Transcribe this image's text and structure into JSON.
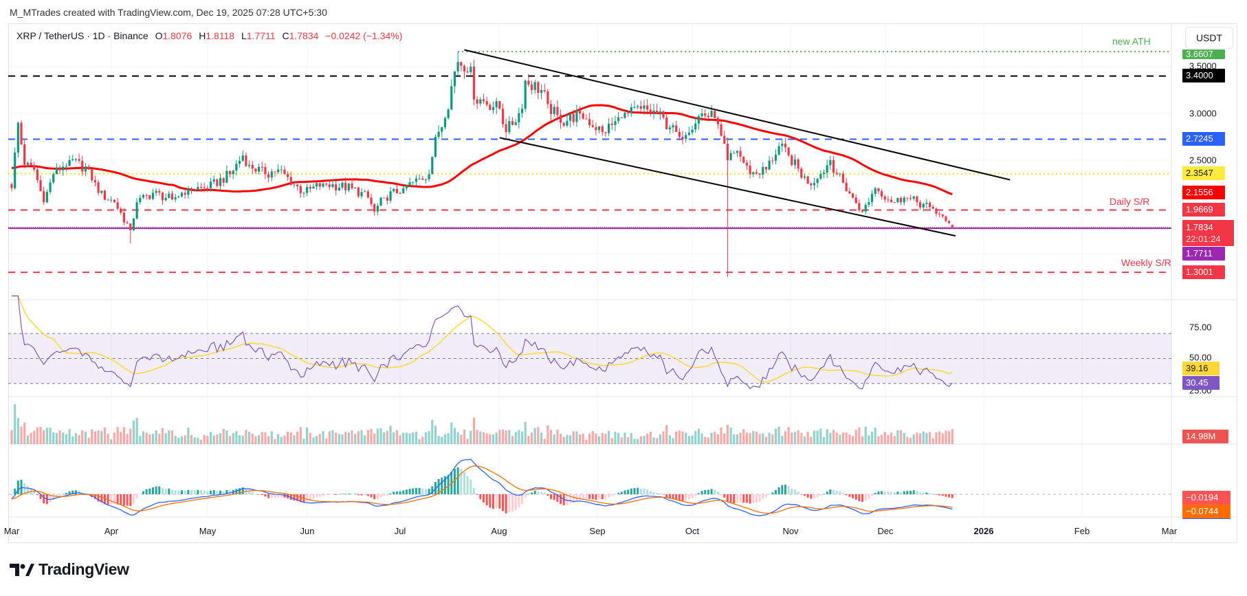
{
  "header": {
    "credit": "M_MTrades created with TradingView.com, Dec 19, 2025 07:28 UTC+5:30"
  },
  "legend": {
    "symbol": "XRP / TetherUS · 1D · Binance",
    "o_label": "O",
    "o": "1.8076",
    "h_label": "H",
    "h": "1.8118",
    "l_label": "L",
    "l": "1.7711",
    "c_label": "C",
    "c": "1.7834",
    "change": "−0.0242 (−1.34%)"
  },
  "currency_button": "USDT",
  "price_axis": {
    "ticks": [
      "3.5000",
      "3.0000",
      "2.5000"
    ]
  },
  "levels": {
    "ath": {
      "value": "3.6607",
      "label": "new ATH",
      "color": "#4caf50"
    },
    "black": {
      "value": "3.4000",
      "color": "#000000"
    },
    "blue": {
      "value": "2.7245",
      "color": "#2962ff"
    },
    "yellow": {
      "value": "2.3547",
      "color": "#ffeb3b"
    },
    "ma": {
      "value": "2.1556",
      "color": "#ff0000"
    },
    "daily": {
      "value": "1.9669",
      "label": "Daily S/R",
      "color": "#f23645"
    },
    "last": {
      "value": "1.7834",
      "countdown": "22:01:24",
      "color": "#f23645"
    },
    "support": {
      "value": "1.7711",
      "color": "#9c27b0"
    },
    "weekly": {
      "value": "1.3001",
      "label": "Weekly S/R",
      "color": "#f23645"
    }
  },
  "rsi": {
    "ticks": [
      "75.00",
      "50.00",
      "25.00"
    ],
    "ma_value": "39.16",
    "value": "30.45",
    "line_color": "#7e57c2",
    "ma_color": "#fdd835"
  },
  "volume": {
    "value": "14.98M",
    "up_color": "#26a69a",
    "down_color": "#ef5350"
  },
  "macd": {
    "histogram": "−0.0194",
    "signal": "−0.0744",
    "macd_color": "#2962ff",
    "signal_color": "#ff6d00"
  },
  "time_axis": {
    "ticks": [
      "Mar",
      "Apr",
      "May",
      "Jun",
      "Jul",
      "Aug",
      "Sep",
      "Oct",
      "Nov",
      "Dec",
      "2026",
      "Feb",
      "Mar"
    ]
  },
  "footer": {
    "brand": "TradingView"
  },
  "chart_data": {
    "type": "candlestick",
    "title": "XRP / TetherUS · 1D · Binance",
    "x_range": [
      "2025-03-01",
      "2026-03-01"
    ],
    "ylim": [
      1.2,
      3.75
    ],
    "approx_close_path": [
      [
        "2025-03-01",
        2.2
      ],
      [
        "2025-03-03",
        2.9
      ],
      [
        "2025-03-05",
        2.45
      ],
      [
        "2025-03-08",
        2.4
      ],
      [
        "2025-03-11",
        2.05
      ],
      [
        "2025-03-14",
        2.35
      ],
      [
        "2025-03-19",
        2.5
      ],
      [
        "2025-03-25",
        2.4
      ],
      [
        "2025-03-28",
        2.15
      ],
      [
        "2025-04-02",
        2.05
      ],
      [
        "2025-04-07",
        1.75
      ],
      [
        "2025-04-09",
        2.05
      ],
      [
        "2025-04-14",
        2.15
      ],
      [
        "2025-04-20",
        2.08
      ],
      [
        "2025-04-25",
        2.2
      ],
      [
        "2025-05-01",
        2.2
      ],
      [
        "2025-05-08",
        2.35
      ],
      [
        "2025-05-12",
        2.55
      ],
      [
        "2025-05-14",
        2.45
      ],
      [
        "2025-05-19",
        2.35
      ],
      [
        "2025-05-23",
        2.4
      ],
      [
        "2025-05-31",
        2.15
      ],
      [
        "2025-06-06",
        2.25
      ],
      [
        "2025-06-15",
        2.2
      ],
      [
        "2025-06-20",
        2.1
      ],
      [
        "2025-06-22",
        1.95
      ],
      [
        "2025-06-25",
        2.1
      ],
      [
        "2025-07-01",
        2.2
      ],
      [
        "2025-07-09",
        2.35
      ],
      [
        "2025-07-11",
        2.75
      ],
      [
        "2025-07-14",
        2.95
      ],
      [
        "2025-07-17",
        3.45
      ],
      [
        "2025-07-18",
        3.55
      ],
      [
        "2025-07-22",
        3.5
      ],
      [
        "2025-07-23",
        3.15
      ],
      [
        "2025-07-25",
        3.15
      ],
      [
        "2025-07-31",
        3.05
      ],
      [
        "2025-08-02",
        2.8
      ],
      [
        "2025-08-07",
        3.05
      ],
      [
        "2025-08-08",
        3.35
      ],
      [
        "2025-08-13",
        3.25
      ],
      [
        "2025-08-15",
        3.1
      ],
      [
        "2025-08-19",
        2.9
      ],
      [
        "2025-08-25",
        3.0
      ],
      [
        "2025-09-01",
        2.8
      ],
      [
        "2025-09-07",
        2.95
      ],
      [
        "2025-09-13",
        3.05
      ],
      [
        "2025-09-18",
        3.0
      ],
      [
        "2025-09-22",
        2.85
      ],
      [
        "2025-09-25",
        2.75
      ],
      [
        "2025-10-02",
        3.0
      ],
      [
        "2025-10-06",
        2.95
      ],
      [
        "2025-10-10",
        2.5
      ],
      [
        "2025-10-13",
        2.6
      ],
      [
        "2025-10-17",
        2.35
      ],
      [
        "2025-10-22",
        2.4
      ],
      [
        "2025-10-26",
        2.65
      ],
      [
        "2025-10-29",
        2.55
      ],
      [
        "2025-11-04",
        2.25
      ],
      [
        "2025-11-07",
        2.3
      ],
      [
        "2025-11-11",
        2.5
      ],
      [
        "2025-11-13",
        2.35
      ],
      [
        "2025-11-18",
        2.1
      ],
      [
        "2025-11-21",
        1.95
      ],
      [
        "2025-11-25",
        2.2
      ],
      [
        "2025-12-01",
        2.05
      ],
      [
        "2025-12-04",
        2.1
      ],
      [
        "2025-12-08",
        2.05
      ],
      [
        "2025-12-12",
        2.0
      ],
      [
        "2025-12-15",
        1.92
      ],
      [
        "2025-12-17",
        1.85
      ],
      [
        "2025-12-19",
        1.7834
      ]
    ],
    "notable_wicks": [
      [
        "2025-10-10",
        1.25
      ],
      [
        "2025-04-07",
        1.61
      ],
      [
        "2025-07-18",
        3.66
      ]
    ],
    "horizontal_levels": [
      3.6607,
      3.4,
      2.7245,
      2.3547,
      1.9669,
      1.7711,
      1.3001
    ],
    "trendlines": [
      {
        "from": [
          "2025-07-20",
          3.68
        ],
        "to": [
          "2026-01-06",
          2.29
        ]
      },
      {
        "from": [
          "2025-07-31",
          2.74
        ],
        "to": [
          "2025-12-20",
          1.69
        ]
      }
    ],
    "moving_average_last": 2.1556,
    "grid": true
  }
}
